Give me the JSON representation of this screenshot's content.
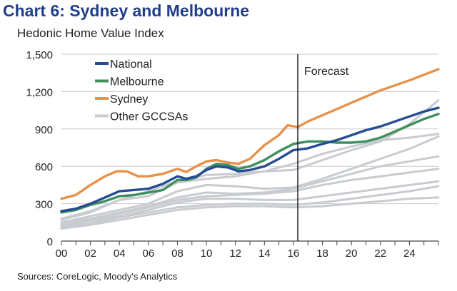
{
  "title": "Chart 6: Sydney and Melbourne",
  "subtitle": "Hedonic Home Value Index",
  "source": "Sources: CoreLogic, Moody's Analytics",
  "chart_data": {
    "type": "line",
    "xlabel": "",
    "ylabel": "",
    "xlim": [
      2000,
      2026
    ],
    "ylim": [
      0,
      1500
    ],
    "x_ticks": [
      "00",
      "02",
      "04",
      "06",
      "08",
      "10",
      "12",
      "14",
      "16",
      "18",
      "20",
      "22",
      "24"
    ],
    "x_tick_values": [
      2000,
      2002,
      2004,
      2006,
      2008,
      2010,
      2012,
      2014,
      2016,
      2018,
      2020,
      2022,
      2024
    ],
    "y_ticks": [
      "0",
      "300",
      "600",
      "900",
      "1,200",
      "1,500"
    ],
    "y_tick_values": [
      0,
      300,
      600,
      900,
      1200,
      1500
    ],
    "forecast_start": 2016.3,
    "forecast_label": "Forecast",
    "grid": "horizontal",
    "legend_position": "top-left",
    "series": [
      {
        "name": "Other GCCSAs",
        "color": "#c8cbd0",
        "legend": true,
        "x": [
          2000,
          2002,
          2004,
          2006,
          2008,
          2010,
          2012,
          2014,
          2016,
          2018,
          2020,
          2022,
          2024,
          2026
        ],
        "y": [
          180,
          240,
          330,
          360,
          470,
          500,
          520,
          560,
          620,
          700,
          760,
          810,
          830,
          860
        ]
      },
      {
        "name": "",
        "color": "#c8cbd0",
        "legend": false,
        "x": [
          2000,
          2002,
          2004,
          2006,
          2008,
          2010,
          2012,
          2014,
          2016,
          2018,
          2020,
          2022,
          2024,
          2026
        ],
        "y": [
          170,
          230,
          330,
          400,
          480,
          530,
          540,
          560,
          570,
          650,
          730,
          800,
          940,
          1130
        ]
      },
      {
        "name": "",
        "color": "#c8cbd0",
        "legend": false,
        "x": [
          2000,
          2002,
          2004,
          2006,
          2008,
          2010,
          2012,
          2014,
          2016,
          2018,
          2020,
          2022,
          2024,
          2026
        ],
        "y": [
          150,
          200,
          250,
          300,
          400,
          450,
          440,
          420,
          430,
          500,
          580,
          660,
          740,
          840
        ]
      },
      {
        "name": "",
        "color": "#c8cbd0",
        "legend": false,
        "x": [
          2000,
          2002,
          2004,
          2006,
          2008,
          2010,
          2012,
          2014,
          2016,
          2018,
          2020,
          2022,
          2024,
          2026
        ],
        "y": [
          140,
          180,
          230,
          280,
          350,
          390,
          380,
          390,
          420,
          480,
          540,
          600,
          640,
          680
        ]
      },
      {
        "name": "",
        "color": "#c8cbd0",
        "legend": false,
        "x": [
          2000,
          2002,
          2004,
          2006,
          2008,
          2010,
          2012,
          2014,
          2016,
          2018,
          2020,
          2022,
          2024,
          2026
        ],
        "y": [
          130,
          170,
          220,
          270,
          330,
          360,
          370,
          380,
          400,
          450,
          490,
          520,
          550,
          580
        ]
      },
      {
        "name": "",
        "color": "#c8cbd0",
        "legend": false,
        "x": [
          2000,
          2002,
          2004,
          2006,
          2008,
          2010,
          2012,
          2014,
          2016,
          2018,
          2020,
          2022,
          2024,
          2026
        ],
        "y": [
          120,
          160,
          200,
          250,
          310,
          340,
          340,
          330,
          330,
          360,
          390,
          420,
          450,
          480
        ]
      },
      {
        "name": "",
        "color": "#c8cbd0",
        "legend": false,
        "x": [
          2000,
          2002,
          2004,
          2006,
          2008,
          2010,
          2012,
          2014,
          2016,
          2018,
          2020,
          2022,
          2024,
          2026
        ],
        "y": [
          110,
          140,
          190,
          230,
          270,
          290,
          300,
          300,
          290,
          310,
          340,
          370,
          400,
          440
        ]
      },
      {
        "name": "",
        "color": "#c8cbd0",
        "legend": false,
        "x": [
          2000,
          2002,
          2004,
          2006,
          2008,
          2010,
          2012,
          2014,
          2016,
          2018,
          2020,
          2022,
          2024,
          2026
        ],
        "y": [
          100,
          130,
          170,
          210,
          250,
          270,
          280,
          280,
          270,
          280,
          300,
          320,
          340,
          350
        ]
      },
      {
        "name": "Sydney",
        "color": "#e8914a",
        "legend": true,
        "x": [
          2000,
          2001,
          2002,
          2003,
          2003.8,
          2004.5,
          2005.3,
          2006,
          2007,
          2008,
          2008.6,
          2009.3,
          2010,
          2010.7,
          2011.5,
          2012.2,
          2013,
          2014,
          2015,
          2015.6,
          2016.3,
          2017,
          2018,
          2019,
          2020,
          2021,
          2022,
          2023,
          2024,
          2025,
          2026
        ],
        "y": [
          340,
          370,
          450,
          520,
          560,
          560,
          520,
          520,
          540,
          580,
          555,
          600,
          640,
          650,
          630,
          620,
          660,
          770,
          850,
          930,
          915,
          960,
          1010,
          1060,
          1110,
          1160,
          1210,
          1250,
          1290,
          1335,
          1380
        ]
      },
      {
        "name": "Melbourne",
        "color": "#3f8f5e",
        "legend": true,
        "x": [
          2000,
          2001,
          2002,
          2003,
          2004,
          2005,
          2006,
          2007,
          2008,
          2008.6,
          2009.3,
          2010,
          2010.7,
          2011.5,
          2012.2,
          2013,
          2014,
          2015,
          2016,
          2017,
          2018,
          2019,
          2020,
          2021,
          2022,
          2023,
          2024,
          2025,
          2026
        ],
        "y": [
          230,
          250,
          290,
          320,
          360,
          370,
          390,
          410,
          490,
          490,
          510,
          580,
          620,
          610,
          580,
          600,
          650,
          720,
          780,
          800,
          800,
          790,
          790,
          800,
          830,
          880,
          930,
          980,
          1020
        ]
      },
      {
        "name": "National",
        "color": "#264b94",
        "legend": true,
        "x": [
          2000,
          2001,
          2002,
          2003,
          2004,
          2005,
          2006,
          2007,
          2008,
          2008.6,
          2009.3,
          2010,
          2010.7,
          2011.5,
          2012.2,
          2013,
          2014,
          2015,
          2016,
          2017,
          2018,
          2019,
          2020,
          2021,
          2022,
          2023,
          2024,
          2025,
          2026
        ],
        "y": [
          240,
          260,
          300,
          350,
          400,
          410,
          420,
          460,
          520,
          500,
          520,
          570,
          600,
          590,
          560,
          570,
          600,
          660,
          730,
          745,
          780,
          810,
          850,
          890,
          920,
          960,
          1000,
          1040,
          1070
        ]
      }
    ]
  }
}
